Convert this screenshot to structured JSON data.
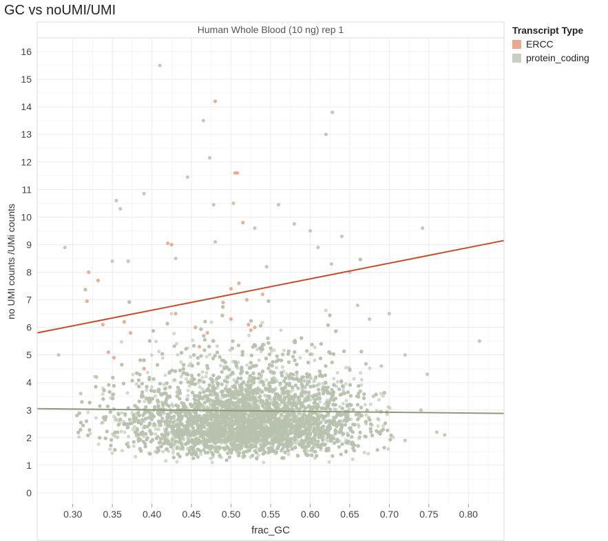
{
  "page": {
    "title": "GC vs noUMI/UMI"
  },
  "legend": {
    "title": "Transcript Type",
    "items": [
      {
        "label": "ERCC",
        "color": "#e9a98f"
      },
      {
        "label": "protein_coding",
        "color": "#c8cec0"
      }
    ]
  },
  "chart_data": {
    "type": "scatter",
    "facet_title": "Human Whole Blood (10 ng) rep 1",
    "xlabel": "frac_GC",
    "ylabel": "no UMI counts /UMi counts",
    "xlim": [
      0.255,
      0.845
    ],
    "ylim": [
      -0.4,
      16.5
    ],
    "x_ticks": [
      "0.30",
      "0.35",
      "0.40",
      "0.45",
      "0.50",
      "0.55",
      "0.60",
      "0.65",
      "0.70",
      "0.75",
      "0.80"
    ],
    "y_ticks": [
      "0",
      "1",
      "2",
      "3",
      "4",
      "5",
      "6",
      "7",
      "8",
      "9",
      "10",
      "11",
      "12",
      "13",
      "14",
      "15",
      "16"
    ],
    "grid": true,
    "legend_position": "right",
    "series": [
      {
        "name": "ERCC",
        "color": "#e9a98f",
        "trend_color": "#cc4a26",
        "trend_line": [
          [
            0.255,
            5.8
          ],
          [
            0.845,
            9.15
          ]
        ],
        "points": [
          [
            0.32,
            8.0
          ],
          [
            0.332,
            7.7
          ],
          [
            0.318,
            6.95
          ],
          [
            0.338,
            6.1
          ],
          [
            0.345,
            5.1
          ],
          [
            0.352,
            4.9
          ],
          [
            0.365,
            6.2
          ],
          [
            0.373,
            5.8
          ],
          [
            0.39,
            4.5
          ],
          [
            0.42,
            9.05
          ],
          [
            0.425,
            9.0
          ],
          [
            0.43,
            6.5
          ],
          [
            0.455,
            6.0
          ],
          [
            0.48,
            14.2
          ],
          [
            0.49,
            6.9
          ],
          [
            0.5,
            7.4
          ],
          [
            0.505,
            11.6
          ],
          [
            0.508,
            11.6
          ],
          [
            0.51,
            7.6
          ],
          [
            0.515,
            9.8
          ],
          [
            0.52,
            7.0
          ],
          [
            0.522,
            6.1
          ],
          [
            0.525,
            5.9
          ],
          [
            0.53,
            6.0
          ],
          [
            0.54,
            7.2
          ],
          [
            0.47,
            5.8
          ],
          [
            0.46,
            5.3
          ],
          [
            0.5,
            6.3
          ]
        ]
      },
      {
        "name": "protein_coding",
        "color": "#b8c2ae",
        "trend_color": "#8a9a78",
        "trend_line": [
          [
            0.255,
            3.05
          ],
          [
            0.845,
            2.88
          ]
        ],
        "points": [
          [
            0.41,
            15.5
          ],
          [
            0.465,
            13.5
          ],
          [
            0.473,
            12.15
          ],
          [
            0.445,
            11.45
          ],
          [
            0.39,
            10.85
          ],
          [
            0.355,
            10.6
          ],
          [
            0.36,
            10.3
          ],
          [
            0.478,
            10.45
          ],
          [
            0.503,
            10.5
          ],
          [
            0.56,
            10.45
          ],
          [
            0.58,
            9.75
          ],
          [
            0.53,
            9.6
          ],
          [
            0.62,
            13.0
          ],
          [
            0.628,
            13.8
          ],
          [
            0.6,
            9.5
          ],
          [
            0.64,
            9.3
          ],
          [
            0.742,
            9.6
          ],
          [
            0.814,
            5.5
          ],
          [
            0.282,
            5.0
          ],
          [
            0.29,
            8.9
          ],
          [
            0.35,
            8.4
          ],
          [
            0.37,
            8.4
          ],
          [
            0.43,
            8.5
          ],
          [
            0.48,
            9.1
          ],
          [
            0.545,
            8.2
          ],
          [
            0.61,
            8.9
          ],
          [
            0.627,
            8.3
          ],
          [
            0.65,
            8.0
          ],
          [
            0.7,
            6.5
          ],
          [
            0.72,
            5.0
          ],
          [
            0.748,
            4.3
          ],
          [
            0.76,
            2.2
          ],
          [
            0.77,
            2.1
          ],
          [
            0.72,
            1.9
          ],
          [
            0.74,
            3.0
          ],
          [
            0.305,
            2.8
          ],
          [
            0.31,
            3.6
          ],
          [
            0.33,
            4.2
          ],
          [
            0.68,
            3.5
          ],
          [
            0.69,
            4.6
          ],
          [
            0.66,
            6.8
          ],
          [
            0.675,
            6.3
          ]
        ],
        "cloud": {
          "count": 9000,
          "x_mean": 0.52,
          "x_sd": 0.075,
          "x_range": [
            0.305,
            0.705
          ],
          "y_median": 2.55,
          "y_spread": 0.28,
          "y_min": 1.1
        }
      }
    ]
  }
}
